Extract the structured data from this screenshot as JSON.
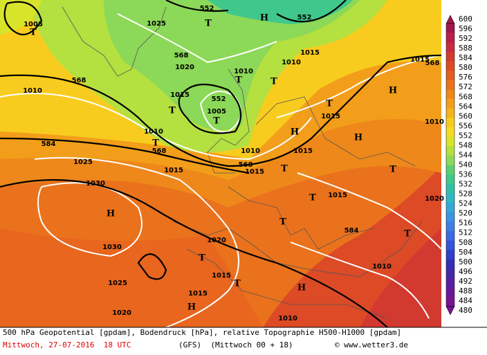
{
  "map_labels": [
    "552",
    "552",
    "568",
    "568",
    "552",
    "584",
    "568",
    "568",
    "568",
    "584",
    "1005",
    "1025",
    "1020",
    "1010",
    "1010",
    "1015",
    "1010",
    "1015",
    "1005",
    "1015",
    "1010",
    "1010",
    "1015",
    "1015",
    "1025",
    "1015",
    "1015",
    "1030",
    "1015",
    "1020",
    "1030",
    "1015",
    "1010",
    "1025",
    "1015",
    "1020",
    "1010",
    "1010",
    "1020",
    "T",
    "T",
    "H",
    "T",
    "T",
    "H",
    "T",
    "T",
    "T",
    "H",
    "T",
    "H",
    "T",
    "T",
    "H",
    "T",
    "T",
    "T",
    "T",
    "T",
    "H",
    "H"
  ],
  "colorbar": {
    "labels": [
      600,
      596,
      592,
      588,
      584,
      580,
      576,
      572,
      568,
      564,
      560,
      556,
      552,
      548,
      544,
      540,
      536,
      532,
      528,
      524,
      520,
      516,
      512,
      508,
      504,
      500,
      496,
      492,
      488,
      484,
      480
    ],
    "colors": [
      "#a0184a",
      "#b82048",
      "#c82a40",
      "#d23a30",
      "#dc4a26",
      "#e45c20",
      "#ea721c",
      "#ee881a",
      "#f29e1a",
      "#f5b41c",
      "#f8cc1e",
      "#f4dc20",
      "#d8e42a",
      "#b4e040",
      "#8cd858",
      "#5cd070",
      "#40c88c",
      "#34c0a8",
      "#30b8c4",
      "#34a8d8",
      "#3c94e0",
      "#4080e4",
      "#3c6ae0",
      "#3454d8",
      "#3040c8",
      "#3430b4",
      "#4428a8",
      "#5820a0",
      "#68189a",
      "#781490"
    ]
  },
  "footer": {
    "line1": "500 hPa Geopotential [gpdam], Bodendruck [hPa], relative Topographie H500-H1000 [gpdam]",
    "date": "Mittwoch, 27-07-2016  18 UTC",
    "run": "(GFS)  (Mittwoch 00 + 18)",
    "credit": "© www.wetter3.de"
  }
}
